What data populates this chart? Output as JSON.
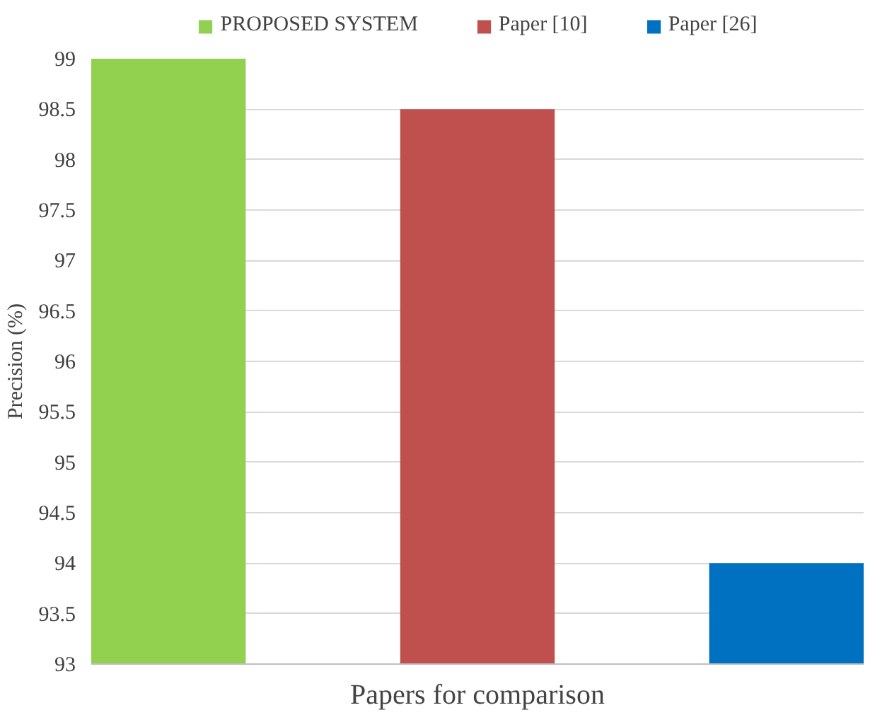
{
  "chart_data": {
    "type": "bar",
    "xlabel": "Papers for comparison",
    "ylabel": "Precision (%)",
    "categories": [
      null
    ],
    "series": [
      {
        "name": "PROPOSED SYSTEM",
        "color": "#92d050",
        "values": [
          99
        ]
      },
      {
        "name": "Paper [10]",
        "color": "#c0504d",
        "values": [
          98.5
        ]
      },
      {
        "name": "Paper [26]",
        "color": "#0070c0",
        "values": [
          94
        ]
      }
    ],
    "ylim": [
      93,
      99
    ],
    "yticks": [
      93,
      93.5,
      94,
      94.5,
      95,
      95.5,
      96,
      96.5,
      97,
      97.5,
      98,
      98.5,
      99
    ],
    "grid": "y",
    "legend": "top"
  }
}
